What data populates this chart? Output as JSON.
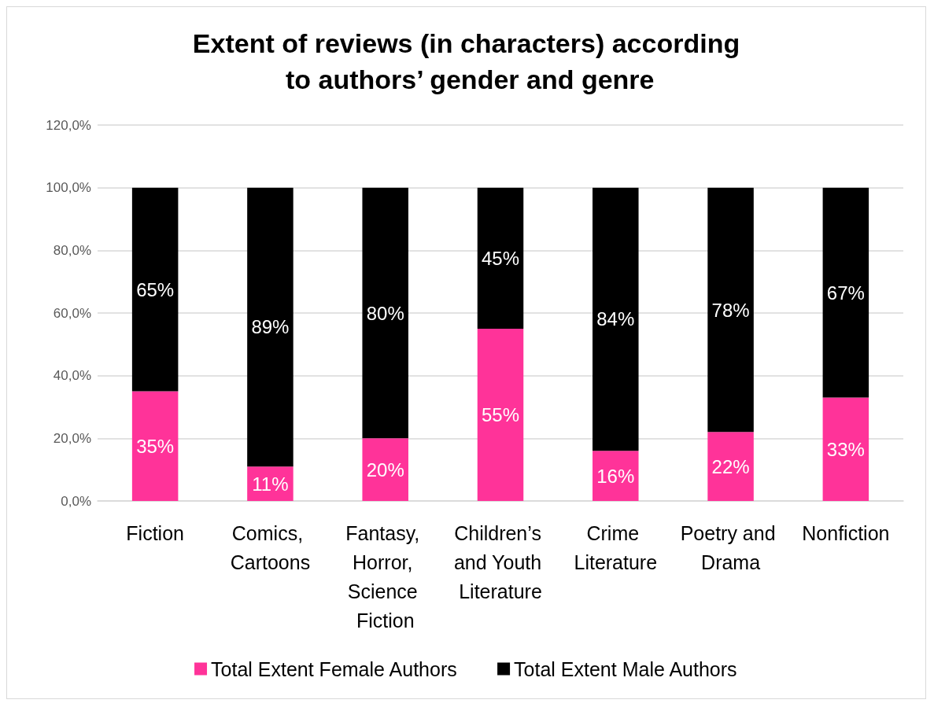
{
  "chart_data": {
    "type": "bar",
    "stacked": true,
    "title": "Extent of reviews (in characters) according to authors’ gender and genre",
    "categories": [
      "Fiction",
      "Comics, Cartoons",
      "Fantasy, Horror, Science Fiction",
      "Children’s and Youth Literature",
      "Crime Literature",
      "Poetry and Drama",
      "Nonfiction"
    ],
    "series": [
      {
        "name": "Total Extent Female Authors",
        "color": "#ff3399",
        "values": [
          35,
          11,
          20,
          55,
          16,
          22,
          33
        ],
        "value_labels": [
          "35%",
          "11%",
          "20%",
          "55%",
          "16%",
          "22%",
          "33%"
        ]
      },
      {
        "name": "Total Extent Male Authors",
        "color": "#000000",
        "values": [
          65,
          89,
          80,
          45,
          84,
          78,
          67
        ],
        "value_labels": [
          "65%",
          "89%",
          "80%",
          "45%",
          "84%",
          "78%",
          "67%"
        ]
      }
    ],
    "ylim": [
      0,
      120
    ],
    "yticks": [
      {
        "value": 0,
        "label": "0,0%"
      },
      {
        "value": 20,
        "label": "20,0%"
      },
      {
        "value": 40,
        "label": "40,0%"
      },
      {
        "value": 60,
        "label": "60,0%"
      },
      {
        "value": 80,
        "label": "80,0%"
      },
      {
        "value": 100,
        "label": "100,0%"
      },
      {
        "value": 120,
        "label": "120,0%"
      }
    ],
    "grid": "y",
    "legend": "bottom"
  }
}
